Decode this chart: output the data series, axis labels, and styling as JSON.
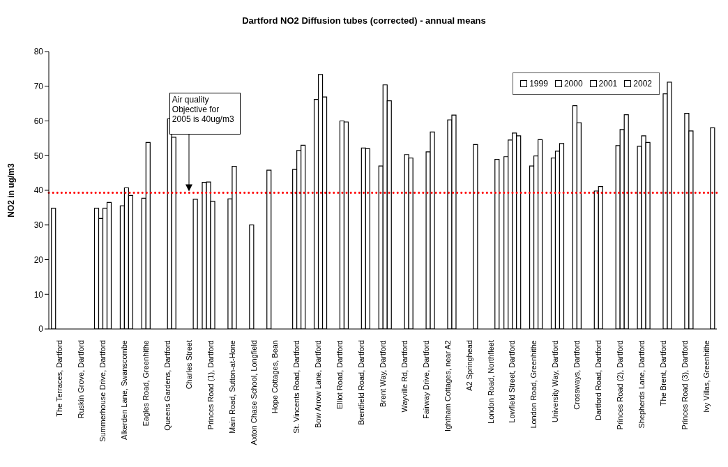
{
  "chart_data": {
    "type": "bar",
    "title": "Dartford NO2 Diffusion tubes (corrected) - annual means",
    "ylabel": "NO2 in ug/m3",
    "categories": [
      "The Terraces, Dartford",
      "Ruskin Grove, Dartford",
      "Summerhouse Drive, Dartford",
      "Alkerden Lane, Swanscombe",
      "Eagles Road, Greenhithe",
      "Queens Gardens, Dartford",
      "Charles Street",
      "Princes Road (1), Dartford",
      "Main Road, Sutton-at-Hone",
      "Axton Chase School, Longfield",
      "Hope Cottages, Bean",
      "St. Vincents Road, Dartford",
      "Bow Arrow Lane, Dartford",
      "Elliot Road, Dartford",
      "Brentfield Road, Dartford",
      "Brent Way, Dartford",
      "Wayville Rd, Dartford",
      "Fairway Drive, Dartford",
      "Ightham Cottages, near A2",
      "A2 Springhead",
      "London Road, Northfleet",
      "Lowfield Street, Dartford",
      "London Road, Greenhithe",
      "University Way, Dartford",
      "Crossways, Dartford",
      "Dartford Road, Dartford",
      "Princes Road (2), Dartford",
      "Shepherds Lane, Dartford",
      "The Brent, Dartford",
      "Princes Road (3), Dartford",
      "Ivy Villas, Greenhithe"
    ],
    "series": [
      {
        "name": "1999",
        "color": "#ffffff",
        "values": [
          34.8,
          null,
          34.8,
          null,
          null,
          null,
          null,
          42.3,
          null,
          null,
          45.8,
          null,
          null,
          null,
          null,
          null,
          null,
          null,
          null,
          null,
          null,
          49.7,
          null,
          null,
          null,
          null,
          null,
          null,
          null,
          null,
          null
        ]
      },
      {
        "name": "2000",
        "color": "#ffffff",
        "values": [
          null,
          null,
          31.9,
          35.5,
          37.7,
          null,
          null,
          42.4,
          37.5,
          30.0,
          null,
          46.0,
          66.2,
          null,
          null,
          47.0,
          null,
          null,
          null,
          null,
          null,
          54.5,
          47.0,
          49.3,
          64.4,
          39.8,
          52.9,
          52.7,
          null,
          null,
          null
        ]
      },
      {
        "name": "2001",
        "color": "#ffffff",
        "values": [
          null,
          null,
          34.8,
          40.7,
          53.8,
          60.6,
          null,
          36.8,
          46.9,
          null,
          null,
          51.5,
          73.4,
          60.0,
          52.2,
          70.4,
          50.3,
          51.1,
          60.3,
          null,
          null,
          56.5,
          49.9,
          51.3,
          59.5,
          41.1,
          57.5,
          55.7,
          67.8,
          62.2,
          null
        ]
      },
      {
        "name": "2002",
        "color": "#ffffff",
        "values": [
          null,
          null,
          36.5,
          38.5,
          null,
          55.3,
          37.4,
          null,
          null,
          null,
          null,
          53.0,
          66.9,
          59.7,
          52.0,
          65.8,
          49.3,
          56.8,
          61.7,
          53.2,
          48.9,
          55.7,
          54.6,
          53.5,
          null,
          null,
          61.8,
          53.8,
          71.2,
          57.1,
          58.0
        ]
      }
    ],
    "ylim": [
      0,
      80
    ],
    "yticks": [
      0,
      10,
      20,
      30,
      40,
      50,
      60,
      70,
      80
    ],
    "ref_lines": [
      {
        "axis": "y",
        "value": 39.3,
        "color": "#ff0000",
        "line_style": "dotted"
      }
    ],
    "annotations": [
      "Air quality Objective for 2005 is 40ug/m3"
    ],
    "legend": "top right"
  }
}
